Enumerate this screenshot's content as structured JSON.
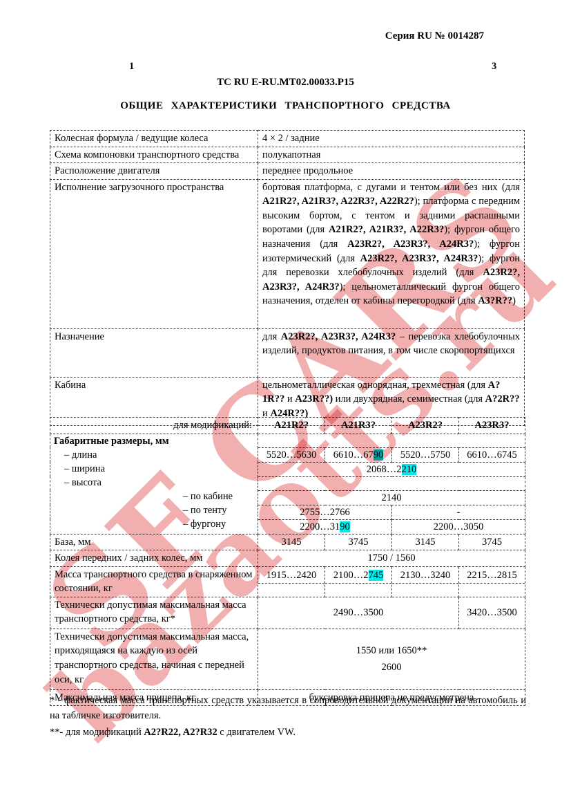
{
  "page": {
    "series": "Серия RU № 0014287",
    "page_num_left": "1",
    "page_num_right": "3",
    "doc_code": "ТС RU E-RU.MT02.00033.P15",
    "title": "ОБЩИЕ ХАРАКТЕРИСТИКИ ТРАНСПОРТНОГО СРЕДСТВА"
  },
  "watermark": {
    "line1": "SF CARS",
    "line2": "bazaotts.ru",
    "color": "#e34d4d"
  },
  "colors": {
    "highlight": "#00e8e8"
  },
  "table1": {
    "rows": [
      {
        "label": "Колесная формула / ведущие колеса",
        "value": "4 × 2 / задние"
      },
      {
        "label": "Схема компоновки транспортного средства",
        "value": "полукапотная"
      },
      {
        "label": "Расположение двигателя",
        "value": "переднее продольное"
      },
      {
        "label": "Исполнение загрузочного пространства",
        "segments": [
          {
            "t": "бортовая платформа, с дугами и тентом или без них (для "
          },
          {
            "t": "A21R2?, A21R3?, A22R3?, A22R2?",
            "b": true
          },
          {
            "t": "); платформа с передним высоким бортом, с тентом и задними распашными воротами (для "
          },
          {
            "t": "A21R2?, A21R3?, A22R3?",
            "b": true
          },
          {
            "t": "); фургон общего назначения (для "
          },
          {
            "t": "A23R2?, A23R3?, A24R3?",
            "b": true
          },
          {
            "t": "); фургон изотермический (для "
          },
          {
            "t": "A23R2?, A23R3?, A24R3?",
            "b": true
          },
          {
            "t": "); фургон для перевозки хлебобулочных изделий (для "
          },
          {
            "t": "A23R2?, A23R3?, A24R3?",
            "b": true
          },
          {
            "t": "); цельнометаллический фургон общего назначения, отделен от кабины перегородкой (для "
          },
          {
            "t": "A3?R??",
            "b": true
          },
          {
            "t": ")"
          }
        ]
      },
      {
        "label": "Назначение",
        "segments": [
          {
            "t": "для "
          },
          {
            "t": "A23R2?, A23R3?, A24R3?",
            "b": true
          },
          {
            "t": " – перевозка хлебобулочных изделий, продуктов питания, в том числе скоропортящихся"
          }
        ]
      },
      {
        "label": "Кабина",
        "segments": [
          {
            "t": "цельнометаллическая однорядная, трехместная (для "
          },
          {
            "t": "A?1R??",
            "b": true
          },
          {
            "t": " и "
          },
          {
            "t": "A23R??)",
            "b": true
          },
          {
            "t": " или двухрядная, семиместная (для "
          },
          {
            "t": "A?2R??",
            "b": true
          },
          {
            "t": " и "
          },
          {
            "t": "A24R??)",
            "b": true
          }
        ]
      }
    ]
  },
  "table2": {
    "mod_label": "для модификаций:",
    "columns": [
      "A21R2?",
      "A21R3?",
      "A23R2?",
      "A23R3?"
    ],
    "dims_title": "Габаритные размеры, мм",
    "length": {
      "label": "–   длина",
      "c1": "5520…5630",
      "c2_pre": "6610…67",
      "c2_hl": "90",
      "c3": "5520…5750",
      "c4": "6610…6745"
    },
    "width": {
      "label": "–   ширина",
      "pre": "2068…2",
      "hl": "210"
    },
    "height": {
      "label": "–   высота"
    },
    "cab": {
      "label": "– по кабине",
      "value": "2140"
    },
    "tent": {
      "label": "– по тенту",
      "left": "2755…2766",
      "right": "-"
    },
    "van": {
      "label": "– фургону",
      "left_pre": "2200…31",
      "left_hl": "90",
      "right": "2200…3050"
    },
    "base": {
      "label": "База, мм",
      "c1": "3145",
      "c2": "3745",
      "c3": "3145",
      "c4": "3745"
    },
    "track": {
      "label": "Колея передних / задних колес, мм",
      "value": "1750 / 1560"
    },
    "curb_mass": {
      "label": "Масса транспортного средства в снаряженном состоянии, кг",
      "c1": "1915…2420",
      "c2_pre": "2100…2",
      "c2_hl": "745",
      "c3": "2130…3240",
      "c4": "2215…2815"
    },
    "max_mass": {
      "label": "Технически допустимая максимальная масса транспортного средства, кг*",
      "left": "2490…3500",
      "right": "3420…3500"
    },
    "axle_mass": {
      "label": "Технически допустимая максимальная масса, приходящаяся на каждую из осей транспортного средства, начиная с передней оси, кг",
      "line1": "1550 или 1650**",
      "line2": "2600"
    },
    "trailer": {
      "label": "Максимальная масса прицепа, кг",
      "value": "буксировка прицепа не предусмотрена"
    }
  },
  "footnotes": {
    "fn1": "* - фактическая масса транспортных средств указывается в сопроводительной документации на автомобиль и на табличке изготовителя.",
    "fn2_segments": [
      {
        "t": "**- для модификаций "
      },
      {
        "t": "A2?R22, A2?R32",
        "b": true
      },
      {
        "t": " с двигателем VW."
      }
    ]
  }
}
